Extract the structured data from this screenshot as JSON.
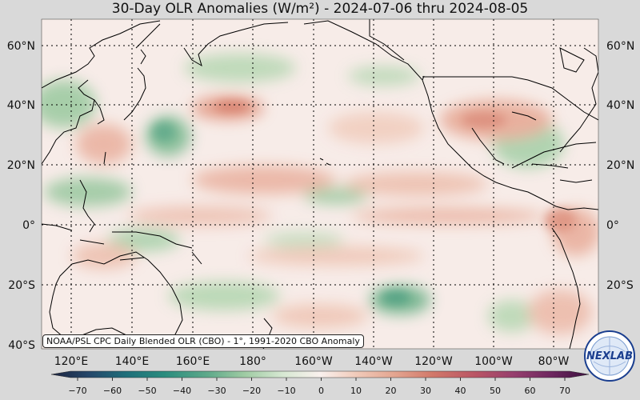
{
  "title": "30-Day OLR Anomalies (W/m²) - 2024-07-06 thru 2024-08-05",
  "credit": "NOAA/PSL CPC Daily Blended OLR (CBO) - 1°, 1991-2020 CBO Anomaly",
  "lat_labels": [
    "60°N",
    "40°N",
    "20°N",
    "0°",
    "20°S",
    "40°S"
  ],
  "lon_labels": [
    "120°E",
    "140°E",
    "160°E",
    "180°",
    "160°W",
    "140°W",
    "120°W",
    "100°W",
    "80°W"
  ],
  "colorbar": {
    "ticks": [
      "−70",
      "−60",
      "−50",
      "−40",
      "−30",
      "−20",
      "−10",
      "0",
      "10",
      "20",
      "30",
      "40",
      "50",
      "60",
      "70"
    ],
    "colors": [
      "#1d2440",
      "#25476a",
      "#1f6f7a",
      "#2a8c7e",
      "#5ea98a",
      "#9fcba3",
      "#d6e8d2",
      "#faf1ee",
      "#f0c9b8",
      "#e3a48f",
      "#d1786a",
      "#b95565",
      "#963f6e",
      "#6e2760",
      "#3d1140"
    ]
  },
  "logo": "NEXLAB",
  "colors": {
    "background": "#d9d9d9",
    "land_outline": "#000000",
    "grid": "#000000"
  }
}
